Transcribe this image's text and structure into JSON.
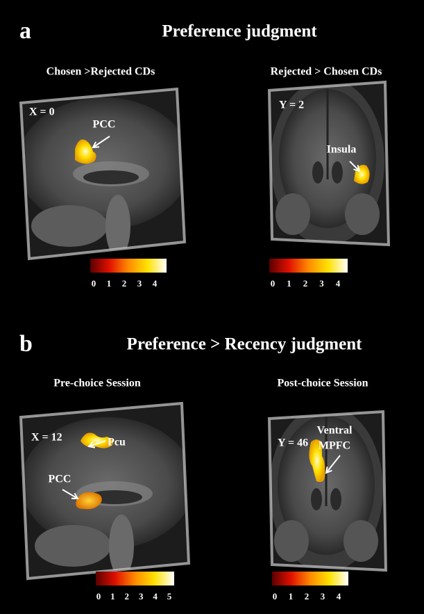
{
  "panels": [
    {
      "letter": "a",
      "title": "Preference judgment",
      "views": [
        {
          "subtitle": "Chosen >Rejected CDs",
          "coordinate": "X = 0",
          "regions": [
            [
              "PCC"
            ]
          ],
          "colorbar_ticks": [
            0,
            1,
            2,
            3,
            4
          ]
        },
        {
          "subtitle": "Rejected > Chosen CDs",
          "coordinate": "Y = 2",
          "regions": [
            [
              "Insula"
            ]
          ],
          "colorbar_ticks": [
            0,
            1,
            2,
            3,
            4
          ]
        }
      ]
    },
    {
      "letter": "b",
      "title": "Preference > Recency judgment",
      "views": [
        {
          "subtitle": "Pre-choice Session",
          "coordinate": "X = 12",
          "regions": [
            [
              "Pcu"
            ],
            [
              "PCC"
            ]
          ],
          "colorbar_ticks": [
            0,
            1,
            2,
            3,
            4,
            5
          ]
        },
        {
          "subtitle": "Post-choice Session",
          "coordinate": "Y = 46",
          "regions": [
            [
              "Ventral",
              "MPFC"
            ]
          ],
          "colorbar_ticks": [
            0,
            1,
            2,
            3,
            4
          ]
        }
      ]
    }
  ]
}
